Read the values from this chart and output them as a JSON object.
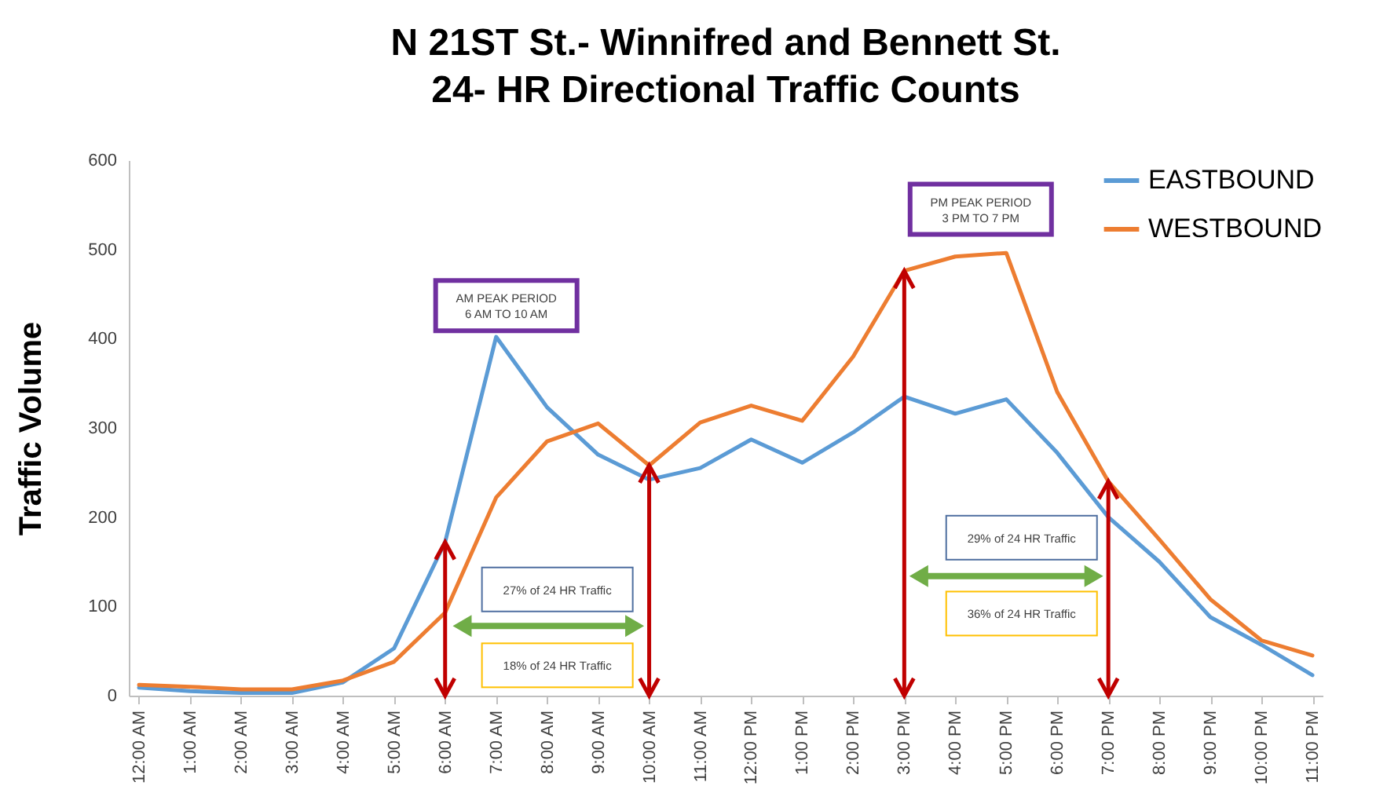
{
  "chart_data": {
    "type": "line",
    "title": "N 21ST St.- Winnifred and Bennett St.\n24- HR Directional Traffic Counts",
    "ylabel": "Traffic Volume",
    "categories": [
      "12:00 AM",
      "1:00 AM",
      "2:00 AM",
      "3:00 AM",
      "4:00 AM",
      "5:00 AM",
      "6:00 AM",
      "7:00 AM",
      "8:00 AM",
      "9:00 AM",
      "10:00 AM",
      "11:00 AM",
      "12:00 PM",
      "1:00 PM",
      "2:00 PM",
      "3:00 PM",
      "4:00 PM",
      "5:00 PM",
      "6:00 PM",
      "7:00 PM",
      "8:00 PM",
      "9:00 PM",
      "10:00 PM",
      "11:00 PM"
    ],
    "series": [
      {
        "name": "EASTBOUND",
        "color": "#5b9bd5",
        "values": [
          9,
          5,
          3,
          3,
          15,
          53,
          172,
          402,
          323,
          270,
          242,
          255,
          287,
          261,
          295,
          335,
          316,
          332,
          272,
          200,
          150,
          88,
          57,
          23
        ]
      },
      {
        "name": "WESTBOUND",
        "color": "#ed7d31",
        "values": [
          12,
          10,
          7,
          7,
          17,
          38,
          93,
          222,
          285,
          305,
          258,
          306,
          325,
          308,
          380,
          476,
          492,
          496,
          340,
          240,
          175,
          108,
          62,
          45
        ]
      }
    ],
    "ref_lines": [
      {
        "axis": "x",
        "value": "6:00 AM",
        "color": "#c00000"
      },
      {
        "axis": "x",
        "value": "10:00 AM",
        "color": "#c00000"
      },
      {
        "axis": "x",
        "value": "3:00 PM",
        "color": "#c00000"
      },
      {
        "axis": "x",
        "value": "7:00 PM",
        "color": "#c00000"
      }
    ],
    "ylim": [
      0,
      600
    ],
    "yticks": [
      0,
      100,
      200,
      300,
      400,
      500,
      600
    ],
    "grid": false,
    "legend": "top right",
    "marker": "none",
    "line_style": "solid",
    "annotations": [
      "AM PEAK PERIOD\n6 AM TO 10 AM",
      "27% of 24 HR Traffic",
      "18% of 24 HR Traffic",
      "PM PEAK PERIOD\n3 PM TO 7 PM",
      "29% of 24 HR Traffic",
      "36% of 24 HR Traffic"
    ]
  }
}
